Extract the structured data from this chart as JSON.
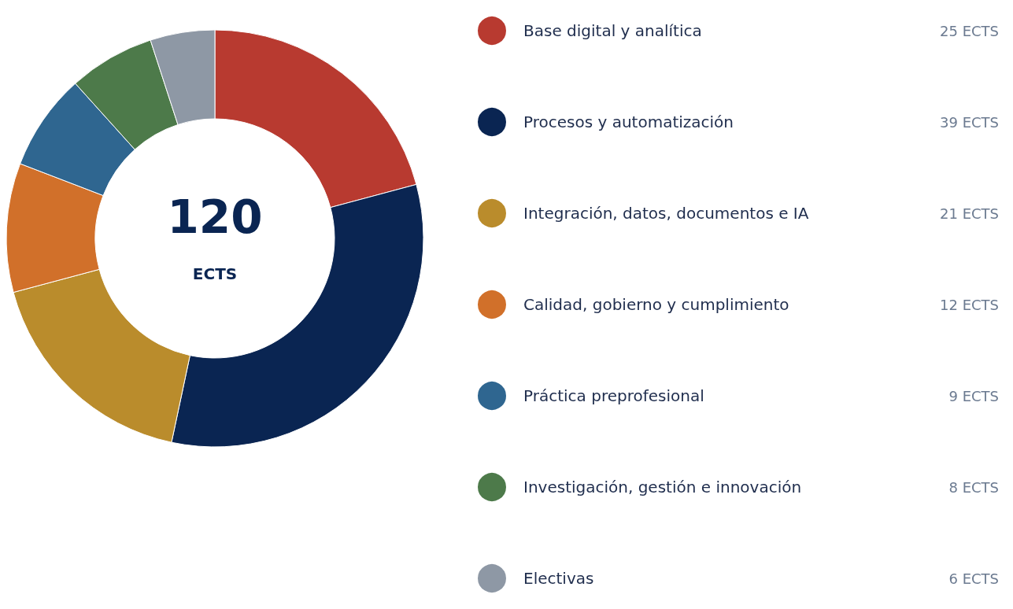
{
  "chart_data": {
    "type": "donut",
    "categories": [
      "Base digital y analítica",
      "Procesos y automatización",
      "Integración, datos, documentos e IA",
      "Calidad, gobierno y cumplimiento",
      "Práctica preprofesional",
      "Investigación, gestión e innovación",
      "Electivas"
    ],
    "values": [
      25,
      39,
      21,
      12,
      9,
      8,
      6
    ],
    "value_labels": [
      "25 ECTS",
      "39 ECTS",
      "21 ECTS",
      "12 ECTS",
      "9 ECTS",
      "8 ECTS",
      "6 ECTS"
    ],
    "colors": [
      "#b83a30",
      "#0a2552",
      "#ba8c2c",
      "#d1702a",
      "#2f6690",
      "#4d7a4a",
      "#8e98a5"
    ],
    "annotations": [
      "120",
      "ECTS"
    ],
    "legend": "right"
  }
}
